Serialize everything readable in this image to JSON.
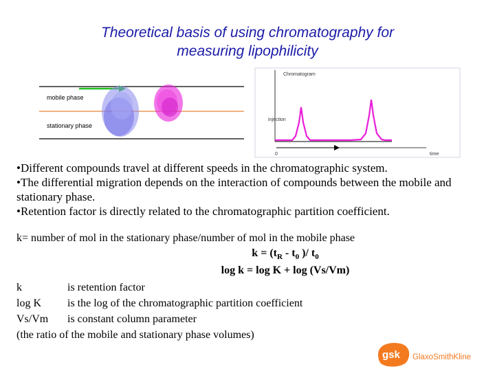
{
  "title": {
    "line1": "Theoretical basis of using chromatography for",
    "line2": "measuring lipophilicity"
  },
  "figure_left": {
    "mobile_label": "mobile phase",
    "stationary_label": "stationary phase",
    "colors": {
      "blue_band": "#8a8aef",
      "magenta_band": "#e81ed8",
      "arrow": "#22c022",
      "line": "#e89a5c"
    }
  },
  "figure_right": {
    "label_chromatogram": "Chromatogram",
    "label_injection": "injection",
    "label_zero": "0",
    "label_time": "time",
    "colors": {
      "peaks": "#e81ed8"
    }
  },
  "bullets": [
    "•Different compounds travel at different speeds in the chromatographic system.",
    "•The differential migration depends on the interaction of compounds between the mobile and stationary phase.",
    "•Retention factor is directly related to the chromatographic partition coefficient."
  ],
  "k_definition": "k= number of mol in the stationary phase/number of mol in the mobile phase",
  "equation1": {
    "left": "k = (t",
    "sub_r": "R",
    "mid": " - t",
    "sub_0a": "0",
    "right": " )/ t",
    "sub_0b": "0"
  },
  "equation2": "log k = log K + log (Vs/Vm)",
  "definitions": [
    {
      "term": "k",
      "desc": "is retention factor"
    },
    {
      "term": "log K",
      "desc": "is the log of the chromatographic partition coefficient"
    },
    {
      "term": "Vs/Vm",
      "desc": "is constant column parameter"
    }
  ],
  "definitions_note": "(the ratio of the mobile and stationary phase volumes)",
  "logo": {
    "mark": "gsk",
    "name": "GlaxoSmithKline",
    "color": "#f47a20"
  }
}
